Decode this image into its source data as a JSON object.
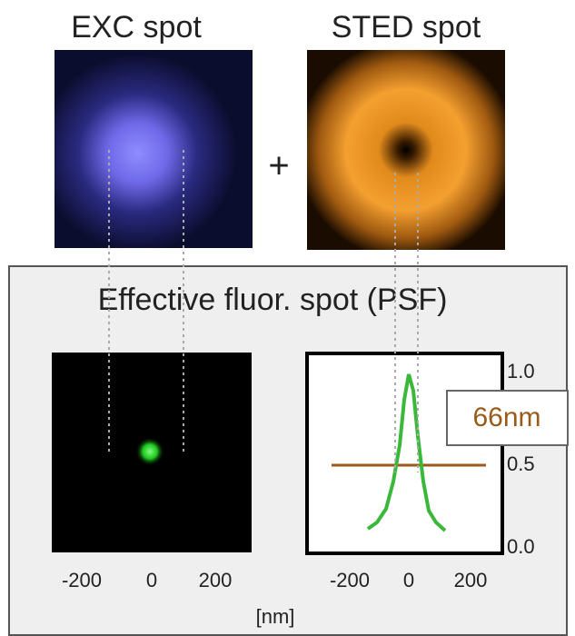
{
  "panels": {
    "excitation": {
      "title": "EXC spot"
    },
    "operator": "+",
    "depletion": {
      "title": "STED spot"
    },
    "result": {
      "title": "Effective fluor. spot (PSF)",
      "image_x_labels": [
        "-200",
        "0",
        "200"
      ],
      "profile": {
        "x_labels": [
          "-200",
          "0",
          "200"
        ],
        "y_labels": [
          "1.0",
          "0.5",
          "0.0"
        ],
        "fwhm_label": "66nm"
      },
      "unit_label": "[nm]"
    }
  }
}
